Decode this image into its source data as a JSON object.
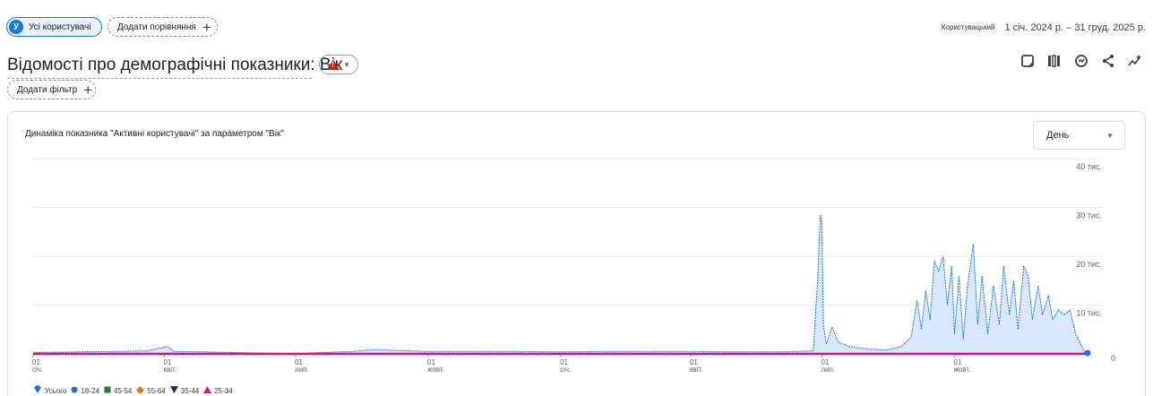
{
  "segments": {
    "active_avatar": "У",
    "active_label": "Усі користувачі",
    "compare_label": "Додати порівняння"
  },
  "date": {
    "tag": "Користувацький",
    "range": "1 січ. 2024 р. – 31 груд. 2025 р."
  },
  "report": {
    "title": "Відомості про демографічні показники: Вік"
  },
  "toolbar": {
    "icons": [
      "customize-report-icon",
      "compare-columns-icon",
      "insights-icon",
      "share-icon",
      "anomaly-icon"
    ]
  },
  "filter": {
    "label": "Додати фільтр"
  },
  "card": {
    "chart_title": "Динаміка показника \"Активні користувачі\" за параметром \"Вік\"",
    "granularity": "День"
  },
  "chart_data": {
    "type": "area",
    "title": "Динаміка показника \"Активні користувачі\" за параметром \"Вік\"",
    "xlabel": "",
    "ylabel": "",
    "x_range": [
      "2024-01-01",
      "2025-12-31"
    ],
    "ylim": [
      0,
      40000
    ],
    "y_ticks": [
      {
        "value": 0,
        "label": "0"
      },
      {
        "value": 10000,
        "label": "10 тис."
      },
      {
        "value": 20000,
        "label": "20 тис."
      },
      {
        "value": 30000,
        "label": "30 тис."
      },
      {
        "value": 40000,
        "label": "40 тис."
      }
    ],
    "x_ticks": [
      {
        "date": "2024-01-01",
        "day": "01",
        "month": "січ."
      },
      {
        "date": "2024-04-01",
        "day": "01",
        "month": "квіт."
      },
      {
        "date": "2024-07-01",
        "day": "01",
        "month": "лип."
      },
      {
        "date": "2024-10-01",
        "day": "01",
        "month": "жовт."
      },
      {
        "date": "2025-01-01",
        "day": "01",
        "month": "січ."
      },
      {
        "date": "2025-04-01",
        "day": "01",
        "month": "квіт."
      },
      {
        "date": "2025-07-01",
        "day": "01",
        "month": "лип."
      },
      {
        "date": "2025-10-01",
        "day": "01",
        "month": "жовт."
      }
    ],
    "grid": true,
    "legend_position": "bottom-left",
    "series": [
      {
        "name": "Усього",
        "color": "#1a73e8",
        "marker": "pin",
        "points": [
          [
            "2024-01-01",
            300
          ],
          [
            "2024-01-20",
            350
          ],
          [
            "2024-02-10",
            450
          ],
          [
            "2024-03-01",
            500
          ],
          [
            "2024-03-20",
            600
          ],
          [
            "2024-04-03",
            1500
          ],
          [
            "2024-04-08",
            500
          ],
          [
            "2024-05-01",
            400
          ],
          [
            "2024-06-01",
            200
          ],
          [
            "2024-07-01",
            100
          ],
          [
            "2024-07-20",
            300
          ],
          [
            "2024-08-10",
            500
          ],
          [
            "2024-08-25",
            900
          ],
          [
            "2024-09-10",
            700
          ],
          [
            "2024-10-01",
            500
          ],
          [
            "2024-11-01",
            500
          ],
          [
            "2024-12-01",
            500
          ],
          [
            "2025-01-01",
            400
          ],
          [
            "2025-02-01",
            500
          ],
          [
            "2025-03-01",
            500
          ],
          [
            "2025-04-01",
            500
          ],
          [
            "2025-05-01",
            400
          ],
          [
            "2025-06-01",
            400
          ],
          [
            "2025-06-25",
            600
          ],
          [
            "2025-06-28",
            15000
          ],
          [
            "2025-06-30",
            28500
          ],
          [
            "2025-07-01",
            27000
          ],
          [
            "2025-07-02",
            6000
          ],
          [
            "2025-07-04",
            2000
          ],
          [
            "2025-07-08",
            5500
          ],
          [
            "2025-07-12",
            2500
          ],
          [
            "2025-07-20",
            1500
          ],
          [
            "2025-08-01",
            1000
          ],
          [
            "2025-08-15",
            800
          ],
          [
            "2025-08-25",
            1500
          ],
          [
            "2025-09-01",
            3500
          ],
          [
            "2025-09-05",
            11000
          ],
          [
            "2025-09-08",
            5000
          ],
          [
            "2025-09-11",
            13000
          ],
          [
            "2025-09-14",
            7000
          ],
          [
            "2025-09-17",
            19000
          ],
          [
            "2025-09-20",
            17000
          ],
          [
            "2025-09-23",
            20000
          ],
          [
            "2025-09-26",
            10000
          ],
          [
            "2025-09-29",
            18000
          ],
          [
            "2025-10-01",
            4000
          ],
          [
            "2025-10-04",
            16000
          ],
          [
            "2025-10-07",
            3000
          ],
          [
            "2025-10-10",
            14000
          ],
          [
            "2025-10-14",
            22500
          ],
          [
            "2025-10-17",
            6000
          ],
          [
            "2025-10-20",
            16000
          ],
          [
            "2025-10-24",
            4000
          ],
          [
            "2025-10-28",
            14000
          ],
          [
            "2025-11-01",
            6000
          ],
          [
            "2025-11-04",
            18000
          ],
          [
            "2025-11-08",
            8000
          ],
          [
            "2025-11-11",
            15000
          ],
          [
            "2025-11-14",
            5000
          ],
          [
            "2025-11-18",
            18000
          ],
          [
            "2025-11-21",
            16000
          ],
          [
            "2025-11-24",
            7000
          ],
          [
            "2025-11-28",
            14000
          ],
          [
            "2025-12-01",
            8000
          ],
          [
            "2025-12-05",
            12000
          ],
          [
            "2025-12-08",
            7000
          ],
          [
            "2025-12-12",
            9000
          ],
          [
            "2025-12-16",
            8000
          ],
          [
            "2025-12-20",
            9000
          ],
          [
            "2025-12-24",
            4000
          ],
          [
            "2025-12-31",
            0
          ]
        ]
      },
      {
        "name": "18-24",
        "color": "#1a73e8",
        "marker": "circle",
        "values_constant": 0
      },
      {
        "name": "45-54",
        "color": "#188038",
        "marker": "square",
        "values_constant": 0
      },
      {
        "name": "55-64",
        "color": "#e8710a",
        "marker": "diamond",
        "values_constant": 0
      },
      {
        "name": "35-44",
        "color": "#1a237e",
        "marker": "triangle-down",
        "values_constant": 0
      },
      {
        "name": "25-34",
        "color": "#d01884",
        "marker": "triangle-up",
        "values_constant": 0
      }
    ]
  }
}
